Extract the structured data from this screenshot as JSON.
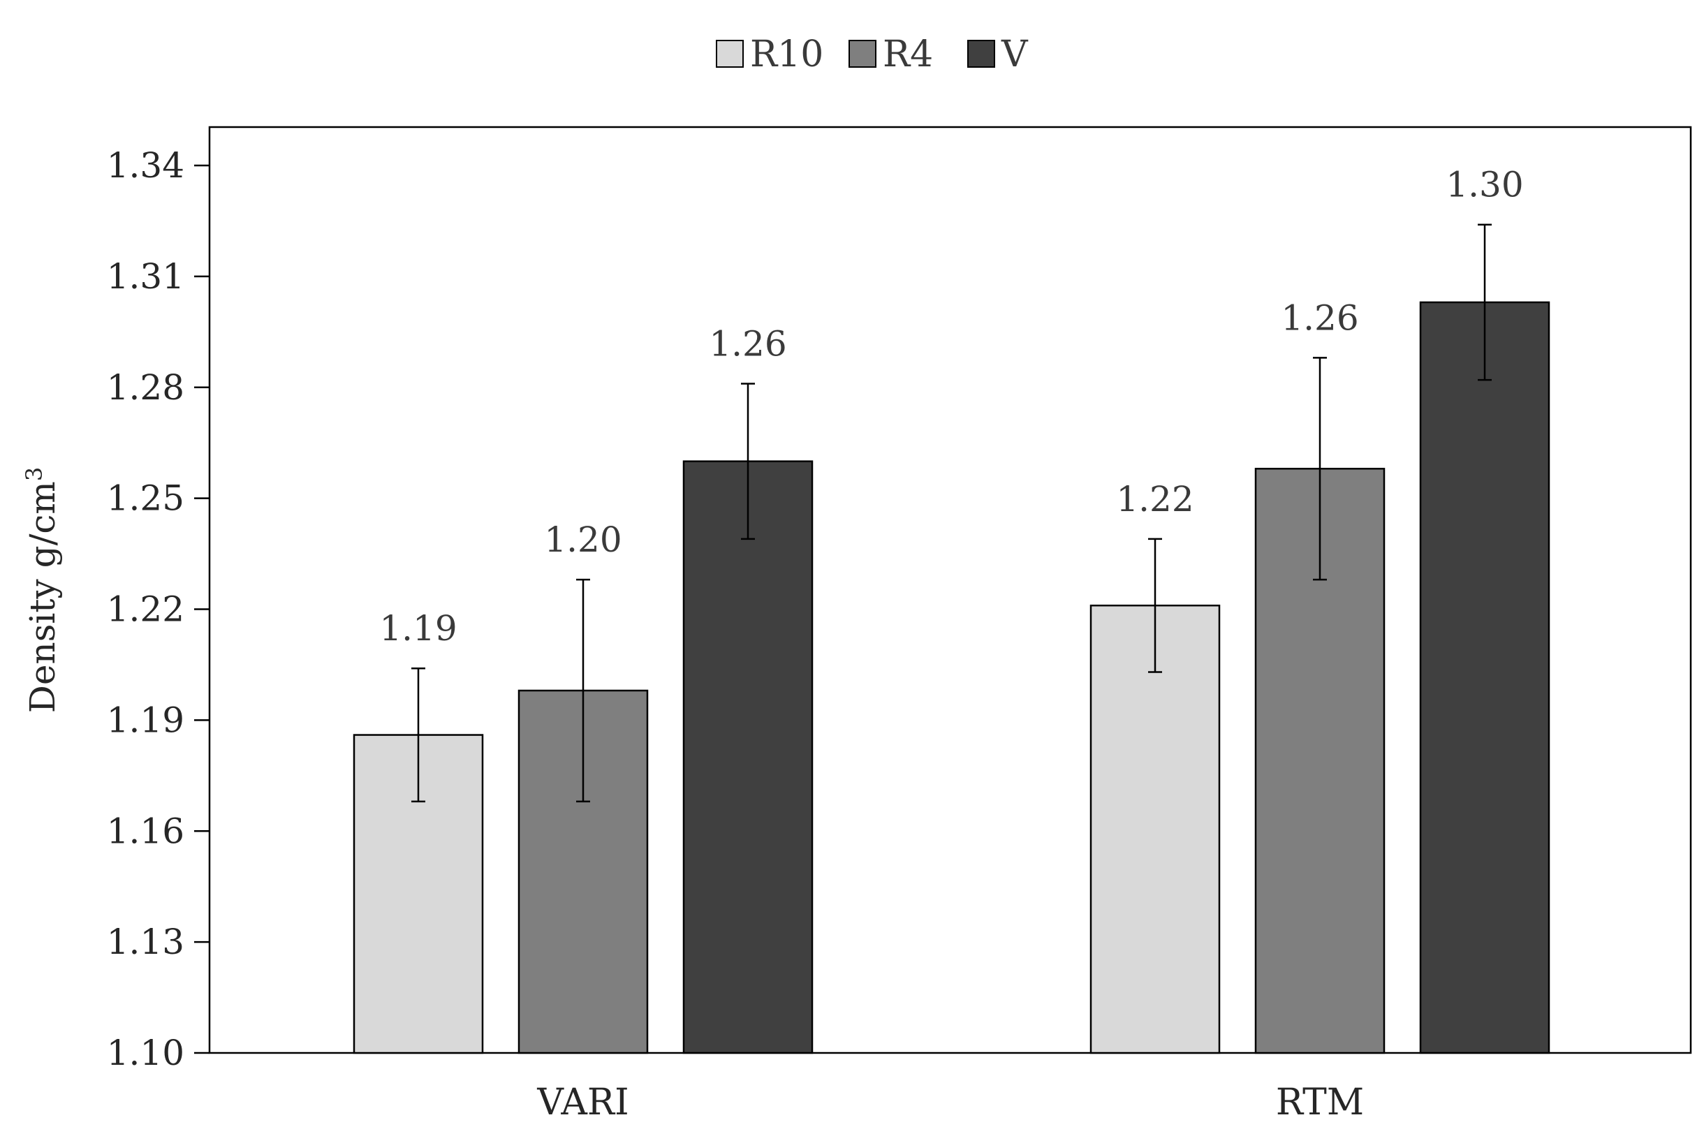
{
  "chart_data": {
    "type": "bar",
    "title": "",
    "xlabel": "",
    "ylabel": "Density g/cm",
    "ylabel_superscript": "3",
    "categories": [
      "VARI",
      "RTM"
    ],
    "series": [
      {
        "name": "R10",
        "color": "#d9d9d9",
        "values": [
          1.186,
          1.221
        ],
        "errors": [
          0.018,
          0.018
        ],
        "labels": [
          "1.19",
          "1.22"
        ]
      },
      {
        "name": "R4",
        "color": "#7f7f7f",
        "values": [
          1.198,
          1.258
        ],
        "errors": [
          0.03,
          0.03
        ],
        "labels": [
          "1.20",
          "1.26"
        ]
      },
      {
        "name": "V",
        "color": "#404040",
        "values": [
          1.26,
          1.303
        ],
        "errors": [
          0.021,
          0.021
        ],
        "labels": [
          "1.26",
          "1.30"
        ]
      }
    ],
    "ylim": [
      1.1,
      1.35
    ],
    "yticks": [
      1.1,
      1.13,
      1.16,
      1.19,
      1.22,
      1.25,
      1.28,
      1.31,
      1.34
    ],
    "ytick_labels": [
      "1.10",
      "1.13",
      "1.16",
      "1.19",
      "1.22",
      "1.25",
      "1.28",
      "1.31",
      "1.34"
    ],
    "grid": false,
    "legend_position": "top-center"
  }
}
